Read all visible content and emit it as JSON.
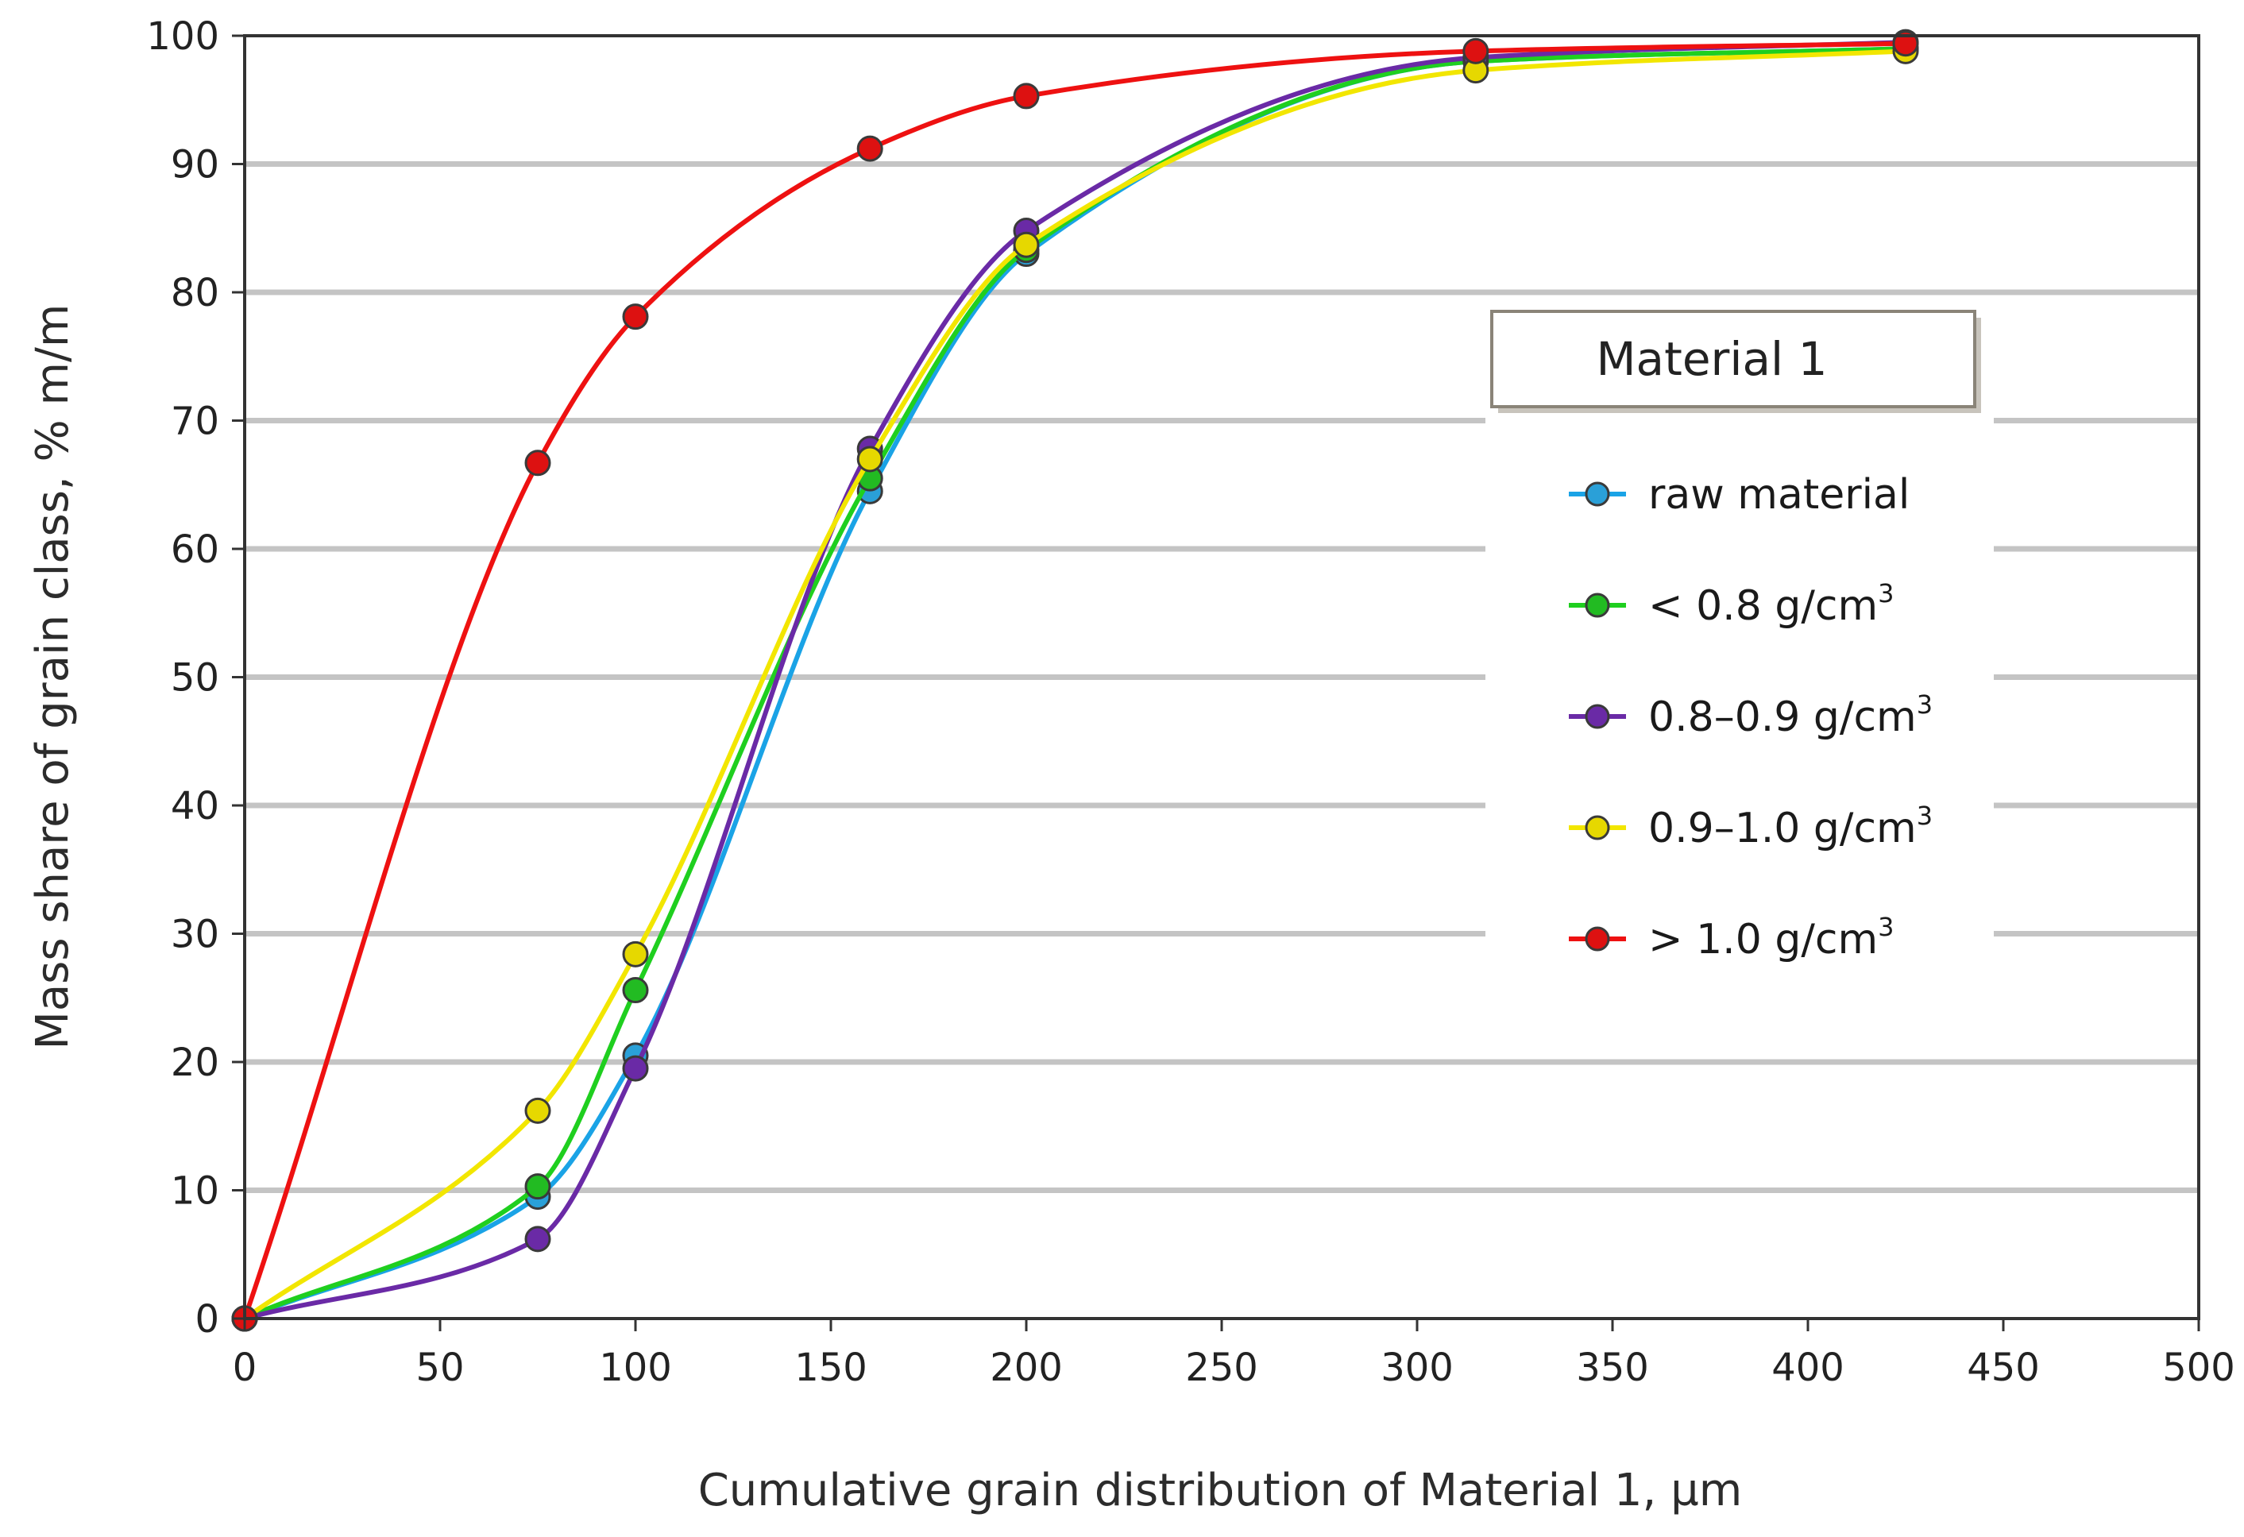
{
  "chart_data": {
    "type": "line",
    "title": "",
    "legend_title": "Material 1",
    "xlabel": "Cumulative grain distribution of Material 1, µm",
    "ylabel": "Mass share of grain class, % m/m",
    "xlim": [
      0,
      500
    ],
    "ylim": [
      0,
      100
    ],
    "xticks": [
      0,
      50,
      100,
      150,
      200,
      250,
      300,
      350,
      400,
      450,
      500
    ],
    "yticks": [
      0,
      10,
      20,
      30,
      40,
      50,
      60,
      70,
      80,
      90,
      100
    ],
    "grid": "horizontal",
    "legend_position": "right",
    "series": [
      {
        "name": "raw material",
        "label_main": "raw material",
        "label_sup": "",
        "color": "#1aa3e6",
        "marker_color": "#2aa0d8",
        "x": [
          0,
          75,
          100,
          160,
          200,
          315,
          425
        ],
        "y": [
          0,
          9.5,
          20.5,
          64.5,
          83,
          98,
          99
        ]
      },
      {
        "name": "< 0.8 g/cm3",
        "label_main": "< 0.8 g/cm",
        "label_sup": "3",
        "color": "#1fcf1f",
        "marker_color": "#22bb22",
        "x": [
          0,
          75,
          100,
          160,
          200,
          315,
          425
        ],
        "y": [
          0,
          10.3,
          25.6,
          65.5,
          83.3,
          98,
          99
        ]
      },
      {
        "name": "0.8–0.9 g/cm3",
        "label_main": "0.8–0.9 g/cm",
        "label_sup": "3",
        "color": "#6a2aa6",
        "marker_color": "#6a2aa6",
        "x": [
          0,
          75,
          100,
          160,
          200,
          315,
          425
        ],
        "y": [
          0,
          6.2,
          19.5,
          67.8,
          84.8,
          98.3,
          99.5
        ]
      },
      {
        "name": "0.9–1.0 g/cm3",
        "label_main": "0.9–1.0 g/cm",
        "label_sup": "3",
        "color": "#f2e600",
        "marker_color": "#e6d800",
        "x": [
          0,
          75,
          100,
          160,
          200,
          315,
          425
        ],
        "y": [
          0,
          16.2,
          28.4,
          67,
          83.7,
          97.3,
          98.8
        ]
      },
      {
        "name": "> 1.0 g/cm3",
        "label_main": "> 1.0 g/cm",
        "label_sup": "3",
        "color": "#ee1111",
        "marker_color": "#dd1111",
        "x": [
          0,
          75,
          100,
          160,
          200,
          315,
          425
        ],
        "y": [
          0,
          66.7,
          78.1,
          91.2,
          95.3,
          98.8,
          99.4
        ]
      }
    ]
  }
}
